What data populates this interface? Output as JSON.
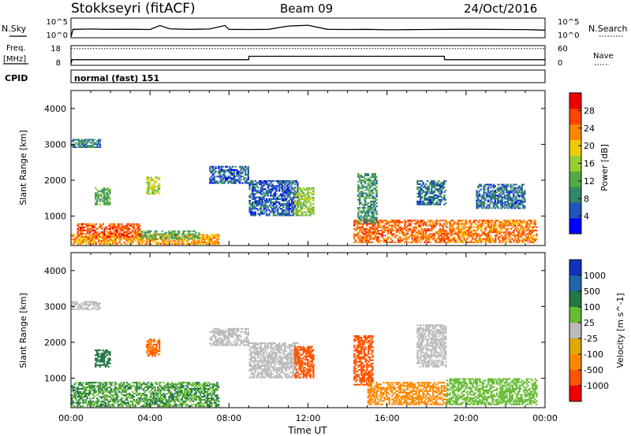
{
  "header": {
    "radar": "Stokkseyri (fitACF)",
    "beam": "Beam 09",
    "date": "24/Oct/2016"
  },
  "strip_panels": {
    "nsky": {
      "left_label": "N.Sky",
      "left_ticks": [
        "10^5",
        "10^0"
      ],
      "right_label": "N.Search",
      "right_ticks": [
        "10^5",
        "10^0"
      ]
    },
    "freq": {
      "left_label_line1": "Freq.",
      "left_label_line2": "[MHz]",
      "left_ticks": [
        "18",
        "8"
      ],
      "right_label": "Nave",
      "right_ticks": [
        "60",
        "0"
      ]
    },
    "cpid": {
      "left_label": "CPID",
      "mode_text": "normal (fast) 151"
    }
  },
  "x_axis": {
    "label": "Time UT",
    "ticks": [
      "00:00",
      "04:00",
      "08:00",
      "12:00",
      "16:00",
      "20:00",
      "00:00"
    ]
  },
  "colors": {
    "power_scale": [
      "#0000ff",
      "#2255bb",
      "#338866",
      "#55aa44",
      "#99cc33",
      "#eecc00",
      "#ff8800",
      "#ff4400",
      "#ee0000"
    ],
    "velocity_scale": [
      "#1133bb",
      "#2266aa",
      "#227744",
      "#66bb33",
      "#bbbbbb",
      "#ddaa00",
      "#ff8800",
      "#ff5500",
      "#ee0000"
    ]
  },
  "chart_data": [
    {
      "type": "line",
      "name": "nsky",
      "x_unit": "hours UT",
      "y_scale": "log",
      "ylim": [
        1,
        100000
      ],
      "ytick_labels": [
        "10^5",
        "10^0"
      ],
      "series": [
        {
          "label": "N.Sky",
          "x": [
            0,
            0.1,
            1,
            2,
            3,
            4,
            4.5,
            5,
            6,
            7,
            7.8,
            8,
            9,
            10,
            11,
            12,
            13,
            14,
            15,
            16,
            17,
            18,
            19,
            20,
            21,
            22,
            23,
            24
          ],
          "y": [
            1,
            200,
            250,
            200,
            220,
            180,
            3000,
            300,
            200,
            260,
            3000,
            200,
            180,
            200,
            2000,
            3500,
            200,
            180,
            200,
            150,
            160,
            180,
            200,
            220,
            200,
            180,
            170,
            120
          ]
        }
      ]
    },
    {
      "type": "line",
      "name": "freq",
      "x_unit": "hours UT",
      "ylim": [
        8,
        18
      ],
      "ytick_labels": [
        "18",
        "8"
      ],
      "right_ylim": [
        0,
        60
      ],
      "right_ytick_labels": [
        "60",
        "0"
      ],
      "series": [
        {
          "label": "Freq.",
          "x": [
            0,
            0.05,
            9,
            9.01,
            18.9,
            18.91,
            24
          ],
          "y": [
            8,
            10.5,
            10.5,
            12.5,
            12.5,
            10.5,
            10.5
          ]
        },
        {
          "label": "Nave",
          "style": "dotted",
          "x": [
            0,
            24
          ],
          "y": [
            55,
            55
          ],
          "axis": "right"
        }
      ]
    },
    {
      "type": "heatmap",
      "name": "power",
      "x": {
        "label": "Time UT",
        "range": [
          0,
          24
        ],
        "unit": "hours",
        "ticks": [
          "00:00",
          "04:00",
          "08:00",
          "12:00",
          "16:00",
          "20:00",
          "00:00"
        ]
      },
      "y": {
        "label": "Slant Range [km]",
        "range": [
          180,
          4500
        ],
        "ticks": [
          1000,
          2000,
          3000,
          4000
        ]
      },
      "colorbar": {
        "label": "Power [dB]",
        "range": [
          0,
          32
        ],
        "ticks": [
          4,
          8,
          12,
          16,
          20,
          24,
          28
        ]
      },
      "regions": [
        {
          "t": [
            0.0,
            7.5
          ],
          "r": [
            200,
            500
          ],
          "value": 22
        },
        {
          "t": [
            0.3,
            3.5
          ],
          "r": [
            400,
            800
          ],
          "value": 26
        },
        {
          "t": [
            3.5,
            6.5
          ],
          "r": [
            350,
            600
          ],
          "value": 12
        },
        {
          "t": [
            0.0,
            1.5
          ],
          "r": [
            2900,
            3150
          ],
          "value": 8
        },
        {
          "t": [
            1.2,
            2.0
          ],
          "r": [
            1300,
            1800
          ],
          "value": 12
        },
        {
          "t": [
            3.8,
            4.5
          ],
          "r": [
            1600,
            2100
          ],
          "value": 17
        },
        {
          "t": [
            7.0,
            9.0
          ],
          "r": [
            1900,
            2400
          ],
          "value": 6
        },
        {
          "t": [
            9.0,
            11.5
          ],
          "r": [
            1000,
            2000
          ],
          "value": 6
        },
        {
          "t": [
            11.3,
            12.3
          ],
          "r": [
            1000,
            1800
          ],
          "value": 15
        },
        {
          "t": [
            14.3,
            19.0
          ],
          "r": [
            250,
            900
          ],
          "value": 25
        },
        {
          "t": [
            14.5,
            15.5
          ],
          "r": [
            800,
            2200
          ],
          "value": 10
        },
        {
          "t": [
            17.5,
            19.0
          ],
          "r": [
            1300,
            2000
          ],
          "value": 7
        },
        {
          "t": [
            19.0,
            23.6
          ],
          "r": [
            250,
            900
          ],
          "value": 24
        },
        {
          "t": [
            20.5,
            23.0
          ],
          "r": [
            1200,
            1900
          ],
          "value": 7
        }
      ]
    },
    {
      "type": "heatmap",
      "name": "velocity",
      "x": {
        "label": "Time UT",
        "range": [
          0,
          24
        ],
        "unit": "hours",
        "ticks": [
          "00:00",
          "04:00",
          "08:00",
          "12:00",
          "16:00",
          "20:00",
          "00:00"
        ]
      },
      "y": {
        "label": "Slant Range [km]",
        "range": [
          180,
          4500
        ],
        "ticks": [
          1000,
          2000,
          3000,
          4000
        ]
      },
      "colorbar": {
        "label": "Velocity [m s^-1]",
        "ticks": [
          "1000",
          "500",
          "100",
          "25",
          "-25",
          "-100",
          "-500",
          "-1000"
        ]
      },
      "regions": [
        {
          "t": [
            0.0,
            7.5
          ],
          "r": [
            200,
            900
          ],
          "value": 60
        },
        {
          "t": [
            0.0,
            1.5
          ],
          "r": [
            2900,
            3150
          ],
          "value": 0
        },
        {
          "t": [
            1.2,
            2.0
          ],
          "r": [
            1300,
            1800
          ],
          "value": 80
        },
        {
          "t": [
            3.8,
            4.5
          ],
          "r": [
            1600,
            2100
          ],
          "value": -300
        },
        {
          "t": [
            7.0,
            9.0
          ],
          "r": [
            1900,
            2400
          ],
          "value": 10
        },
        {
          "t": [
            9.0,
            11.5
          ],
          "r": [
            1000,
            2000
          ],
          "value": 5
        },
        {
          "t": [
            11.3,
            12.3
          ],
          "r": [
            1000,
            1900
          ],
          "value": -600
        },
        {
          "t": [
            14.3,
            15.3
          ],
          "r": [
            800,
            2200
          ],
          "value": -500
        },
        {
          "t": [
            15.0,
            19.0
          ],
          "r": [
            250,
            900
          ],
          "value": -250
        },
        {
          "t": [
            17.5,
            19.0
          ],
          "r": [
            1300,
            2500
          ],
          "value": 0
        },
        {
          "t": [
            19.0,
            23.6
          ],
          "r": [
            250,
            1000
          ],
          "value": 50
        }
      ]
    }
  ]
}
